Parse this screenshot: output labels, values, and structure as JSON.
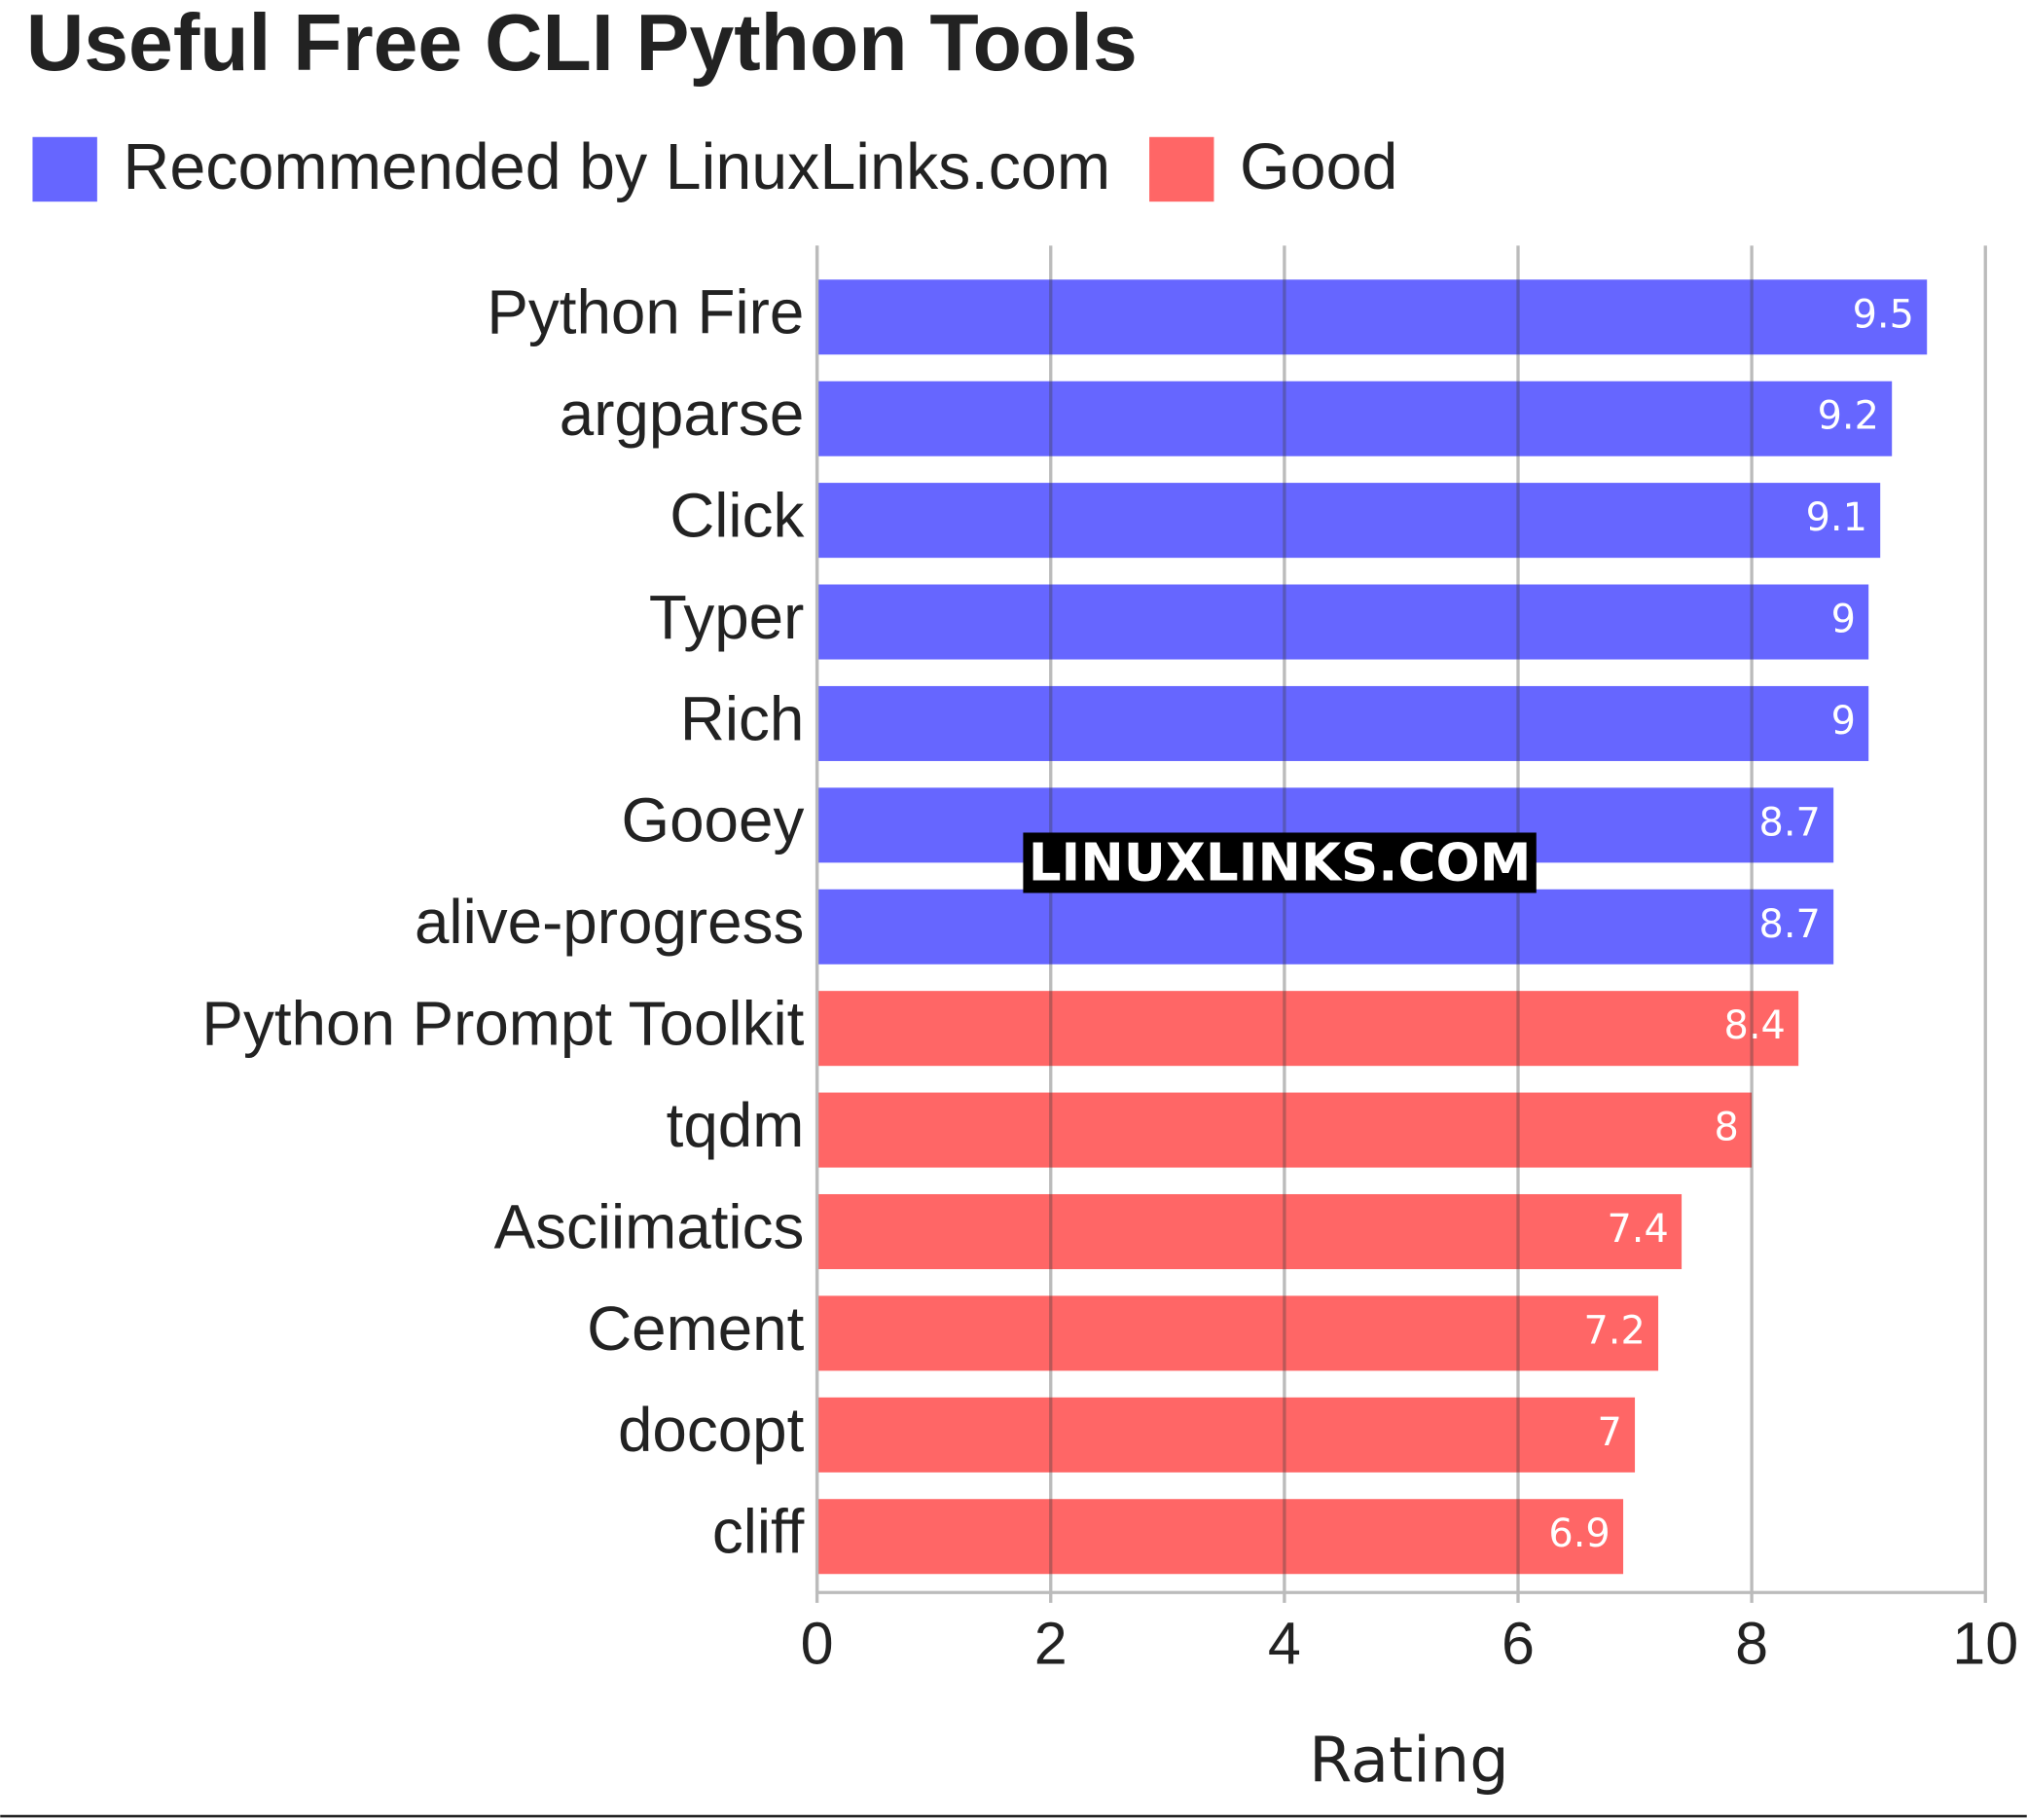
{
  "chart_data": {
    "type": "hbar",
    "title": "Useful Free CLI Python Tools",
    "x_label": "Rating",
    "watermark": "LINUXLINKS.COM",
    "categories": [
      "Python Fire",
      "argparse",
      "Click",
      "Typer",
      "Rich",
      "Gooey",
      "alive-progress",
      "Python Prompt Toolkit",
      "tqdm",
      "Asciimatics",
      "Cement",
      "docopt",
      "cliff"
    ],
    "series": [
      {
        "name": "Recommended by LinuxLinks.com",
        "color": "#6666ff",
        "values": [
          9.5,
          9.2,
          9.1,
          9,
          9,
          8.7,
          8.7,
          null,
          null,
          null,
          null,
          null,
          null
        ]
      },
      {
        "name": "Good",
        "color": "#ff6666",
        "values": [
          null,
          null,
          null,
          null,
          null,
          null,
          null,
          8.4,
          8,
          7.4,
          7.2,
          7,
          6.9
        ]
      }
    ],
    "xlim": [
      0,
      10
    ],
    "xticks": [
      0,
      2,
      4,
      6,
      8,
      10
    ],
    "grid": true,
    "legend": "top-left"
  }
}
